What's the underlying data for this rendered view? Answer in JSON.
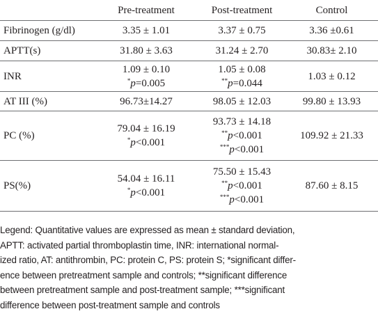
{
  "table": {
    "header": [
      "Pre-treatment",
      "Post-treatment",
      "Control"
    ],
    "rows": [
      {
        "label": "Fibrinogen (g/dl)",
        "cells": [
          [
            "3.35 ± 1.01"
          ],
          [
            "3.37 ± 0.75"
          ],
          [
            "3.36 ±0.61"
          ]
        ]
      },
      {
        "label": "APTT(s)",
        "cells": [
          [
            "31.80 ± 3.63"
          ],
          [
            "31.24 ± 2.70"
          ],
          [
            "30.83± 2.10"
          ]
        ]
      },
      {
        "label": "INR",
        "cells": [
          [
            "1.09 ± 0.10",
            {
              "stars": "*",
              "italic": "p",
              "rest": "=0.005"
            }
          ],
          [
            "1.05 ± 0.08",
            {
              "stars": "**",
              "italic": "p",
              "rest": "=0.044"
            }
          ],
          [
            "1.03 ± 0.12"
          ]
        ]
      },
      {
        "label": "AT III (%)",
        "cells": [
          [
            "96.73±14.27"
          ],
          [
            "98.05 ± 12.03"
          ],
          [
            "99.80 ± 13.93"
          ]
        ]
      },
      {
        "label": "PC (%)",
        "cells": [
          [
            "79.04 ± 16.19",
            {
              "stars": "*",
              "italic": "p",
              "rest": "<0.001"
            }
          ],
          [
            "93.73 ± 14.18",
            {
              "stars": "**",
              "italic": "p",
              "rest": "<0.001"
            },
            {
              "stars": "***",
              "italic": "p",
              "rest": "<0.001"
            }
          ],
          [
            "109.92 ± 21.33"
          ]
        ]
      },
      {
        "label": "PS(%)",
        "cells": [
          [
            "54.04 ± 16.11",
            {
              "stars": "*",
              "italic": "p",
              "rest": "<0.001"
            }
          ],
          [
            "75.50 ± 15.43",
            {
              "stars": "**",
              "italic": "p",
              "rest": "<0.001"
            },
            {
              "stars": "***",
              "italic": "p",
              "rest": "<0.001"
            }
          ],
          [
            "87.60 ± 8.15"
          ]
        ]
      }
    ]
  },
  "legend": [
    "Legend: Quantitative values are expressed as mean ± standard deviation,",
    "APTT: activated partial thromboplastin time, INR: international normal-",
    "ized ratio, AT: antithrombin, PC: protein C, PS: protein S; *significant differ-",
    "ence between pretreatment sample and controls; **significant difference",
    "between pretreatment sample and post-treatment sample; ***significant",
    "difference between post-treatment sample and controls"
  ]
}
